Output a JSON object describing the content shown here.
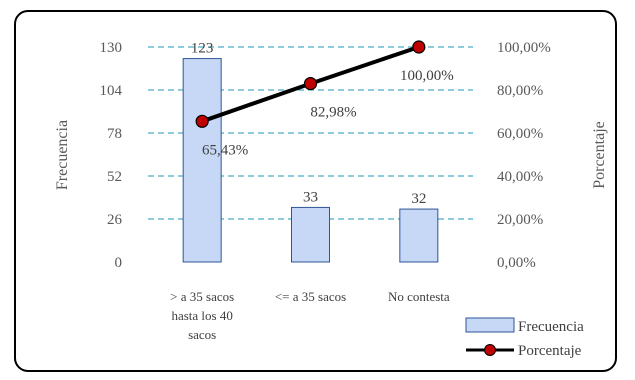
{
  "chart_data": {
    "type": "bar",
    "categories": [
      [
        "> a 35 sacos",
        "hasta los 40",
        "sacos"
      ],
      [
        "<= a 35 sacos"
      ],
      [
        "No contesta"
      ]
    ],
    "series": [
      {
        "name": "Frecuencia",
        "type": "bar",
        "axis": "left",
        "values": [
          123,
          33,
          32
        ],
        "labels": [
          "123",
          "33",
          "32"
        ],
        "color": "#c6d8f5",
        "border": "#2f5597"
      },
      {
        "name": "Porcentaje",
        "type": "line",
        "axis": "right",
        "values": [
          65.43,
          82.98,
          100.0
        ],
        "labels": [
          "65,43%",
          "82,98%",
          "100,00%"
        ],
        "line_color": "#000000",
        "marker_color": "#c00000"
      }
    ],
    "ylabel": "Frecuencia",
    "y2label": "Porcentaje",
    "ylim": [
      0,
      130
    ],
    "yticks": [
      0,
      26,
      52,
      78,
      104,
      130
    ],
    "y2lim": [
      0,
      100
    ],
    "y2ticks": [
      "0,00%",
      "20,00%",
      "40,00%",
      "60,00%",
      "80,00%",
      "100,00%"
    ],
    "grid": "dashed",
    "grid_color": "#4bacc6",
    "legend": "bottom-right"
  }
}
